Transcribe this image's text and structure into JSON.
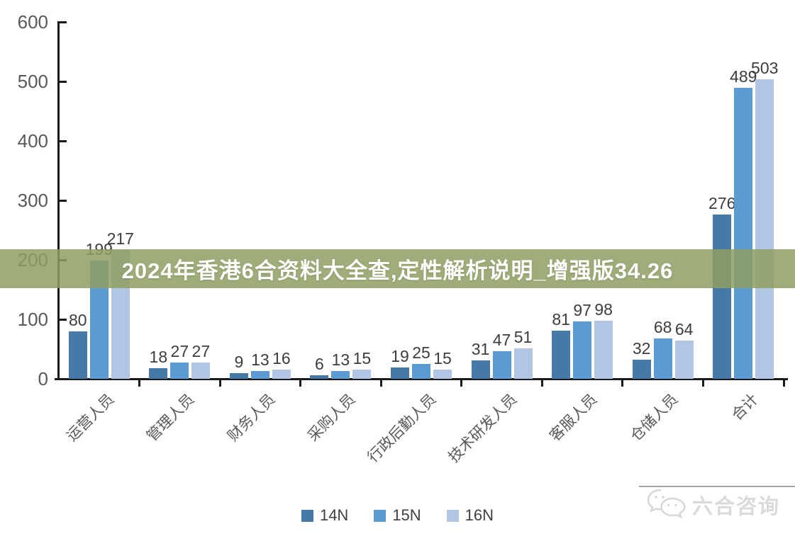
{
  "banner": {
    "text": "2024年香港6合资料大全查,定性解析说明_增强版34.26",
    "bg_color": "#9FAC79",
    "text_color": "#FFFFFF"
  },
  "watermark": {
    "text": "六合咨询",
    "icon": "wechat-chat-bubbles-icon",
    "color": "#DADADA"
  },
  "colors": {
    "axis": "#1A1A1A",
    "tick_label": "#595959",
    "data_label": "#3D3D3D",
    "series_14N": "#4678A8",
    "series_15N": "#5B9AD2",
    "series_16N": "#B2C5E4"
  },
  "chart_data": {
    "type": "bar",
    "title": "",
    "xlabel": "",
    "ylabel": "",
    "categories": [
      "运营人员",
      "管理人员",
      "财务人员",
      "采购人员",
      "行政后勤人员",
      "技术研发人员",
      "客服人员",
      "仓储人员",
      "合计"
    ],
    "series": [
      {
        "name": "14N",
        "color": "#4678A8",
        "values": [
          80,
          18,
          9,
          6,
          19,
          31,
          81,
          32,
          276
        ]
      },
      {
        "name": "15N",
        "color": "#5B9AD2",
        "values": [
          199,
          27,
          13,
          13,
          25,
          47,
          97,
          68,
          489
        ]
      },
      {
        "name": "16N",
        "color": "#B2C5E4",
        "values": [
          217,
          27,
          16,
          15,
          15,
          51,
          98,
          64,
          503
        ]
      }
    ],
    "ylim": [
      0,
      600
    ],
    "yticks": [
      0,
      100,
      200,
      300,
      400,
      500,
      600
    ],
    "grid": false,
    "data_labels": true,
    "legend_position": "bottom",
    "category_label_rotation": -45
  }
}
